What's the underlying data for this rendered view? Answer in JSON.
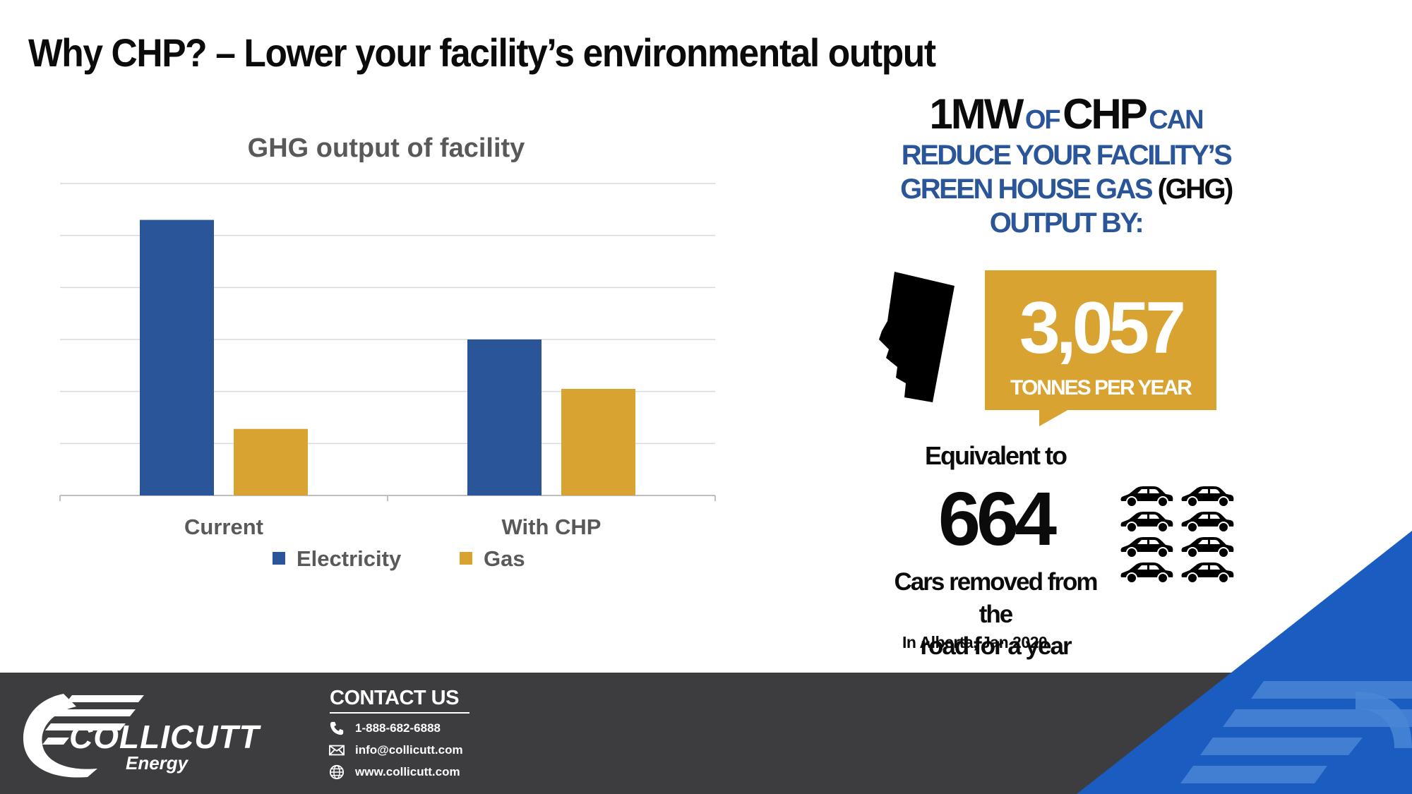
{
  "page": {
    "title": "Why CHP? – Lower your facility’s environmental output"
  },
  "colors": {
    "electricity": "#2a5598",
    "gas": "#d9a332",
    "dark": "#0b0b0b",
    "footer": "#3d3d40",
    "accent_blue": "#1a5cc0"
  },
  "chart_data": {
    "type": "bar",
    "title": "GHG output of facility",
    "categories": [
      "Current",
      "With CHP"
    ],
    "series": [
      {
        "name": "Electricity",
        "values": [
          5.3,
          3.0
        ],
        "color": "#2a5598"
      },
      {
        "name": "Gas",
        "values": [
          1.28,
          2.05
        ],
        "color": "#d9a332"
      }
    ],
    "ylim": [
      0,
      6
    ],
    "grid": true,
    "legend_position": "bottom",
    "xlabel": "",
    "ylabel": ""
  },
  "headline": {
    "part1": "1MW",
    "part2": "OF",
    "part3": "CHP",
    "part4": "CAN",
    "line2": "REDUCE YOUR FACILITY’S",
    "line3a": "GREEN HOUSE GAS",
    "line3b": "(GHG)",
    "line4": "OUTPUT BY:"
  },
  "callout": {
    "value": "3,057",
    "unit": "TONNES PER YEAR",
    "region_icon": "alberta-map-icon"
  },
  "equivalent": {
    "label": "Equivalent to",
    "count": "664",
    "description_line1": "Cars removed from the",
    "description_line2": "road for a year",
    "note": "In Alberta, Jan 2020",
    "icon": "car-icon"
  },
  "footer": {
    "brand_line1": "COLLICUTT",
    "brand_line2": "Energy",
    "contact_title": "CONTACT US",
    "phone": "1-888-682-6888",
    "email": "info@collicutt.com",
    "website": "www.collicutt.com",
    "phone_icon": "phone-icon",
    "email_icon": "envelope-icon",
    "website_icon": "globe-icon"
  }
}
